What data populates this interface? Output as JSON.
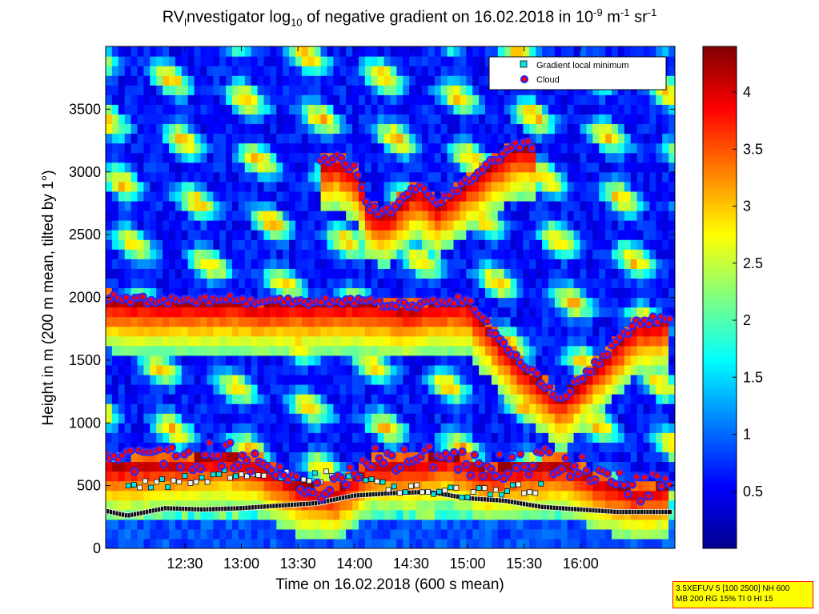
{
  "chart_data": {
    "type": "heatmap",
    "title": {
      "prefix": "RV",
      "sub_l": "l",
      "part1": "nvestigator log",
      "sub_10": "10",
      "part2": " of negative gradient on 16.02.2018 in 10",
      "sup1": "-9",
      "part3": " m",
      "sup2": "-1",
      "part4": " sr",
      "sup3": "-1"
    },
    "xlabel": "Time on 16.02.2018 (600 s mean)",
    "ylabel": "Height in m (200 m mean, tilted by 1°)",
    "x_ticks": [
      "12:30",
      "13:00",
      "13:30",
      "14:00",
      "14:30",
      "15:00",
      "15:30",
      "16:00"
    ],
    "x_tick_minutes": [
      750,
      780,
      810,
      840,
      870,
      900,
      930,
      960
    ],
    "xlim_minutes": [
      708,
      1010
    ],
    "y_ticks": [
      "0",
      "500",
      "1000",
      "1500",
      "2000",
      "2500",
      "3000",
      "3500"
    ],
    "y_tick_values": [
      0,
      500,
      1000,
      1500,
      2000,
      2500,
      3000,
      3500
    ],
    "ylim": [
      0,
      4000
    ],
    "colorbar": {
      "ticks": [
        "0.5",
        "1",
        "1.5",
        "2",
        "2.5",
        "3",
        "3.5",
        "4"
      ],
      "tick_values": [
        0.5,
        1,
        1.5,
        2,
        2.5,
        3,
        3.5,
        4
      ],
      "range": [
        0,
        4.4
      ],
      "colormap": "jet"
    },
    "legend": {
      "position": "top-right",
      "entries": [
        {
          "label": "Gradient local minimum",
          "marker": "square",
          "color": "#00e5e5"
        },
        {
          "label": "Cloud",
          "marker": "circle",
          "color": "#ff0000"
        }
      ]
    },
    "background_field_description": "jet colormap field: dark blue low values, cyan-yellow mid, red high",
    "cloud_layers": [
      {
        "name": "low",
        "t": [
          708,
          712,
          730,
          750,
          770,
          790,
          810,
          830,
          850,
          870,
          890,
          910,
          930,
          950,
          970,
          990,
          1008
        ],
        "h": [
          720,
          680,
          700,
          720,
          760,
          700,
          520,
          480,
          720,
          700,
          760,
          640,
          680,
          700,
          560,
          480,
          520
        ]
      },
      {
        "name": "mid",
        "t": [
          708,
          720,
          735,
          775,
          790,
          805,
          820,
          840,
          870,
          880,
          900,
          915,
          930,
          950,
          990,
          1008
        ],
        "h": [
          2000,
          1990,
          1980,
          1990,
          1960,
          1980,
          1970,
          1980,
          1930,
          1970,
          1980,
          1700,
          1450,
          1200,
          1800,
          1840
        ]
      },
      {
        "name": "high",
        "t": [
          822,
          830,
          842,
          848,
          858,
          873,
          883,
          922,
          930,
          935
        ],
        "h": [
          3080,
          3120,
          3000,
          2700,
          2680,
          2900,
          2750,
          3180,
          3230,
          3200
        ]
      }
    ],
    "gradient_min_line": {
      "t": [
        708,
        720,
        740,
        760,
        780,
        800,
        820,
        840,
        860,
        880,
        900,
        920,
        940,
        960,
        980,
        1008
      ],
      "h": [
        300,
        260,
        320,
        310,
        320,
        340,
        360,
        420,
        440,
        450,
        400,
        380,
        330,
        310,
        290,
        290
      ]
    },
    "mid_level_min": {
      "t": [
        720,
        740,
        760,
        780,
        800,
        820,
        840,
        860,
        880,
        900,
        920,
        940
      ],
      "h": [
        500,
        520,
        560,
        600,
        590,
        560,
        620,
        480,
        460,
        440,
        470,
        480
      ]
    }
  },
  "info_box": {
    "line1": "3.5XEFUV 5 [100 2500] NH 600",
    "line2": "MB 200 RG 15% TI 0 HI 15"
  }
}
